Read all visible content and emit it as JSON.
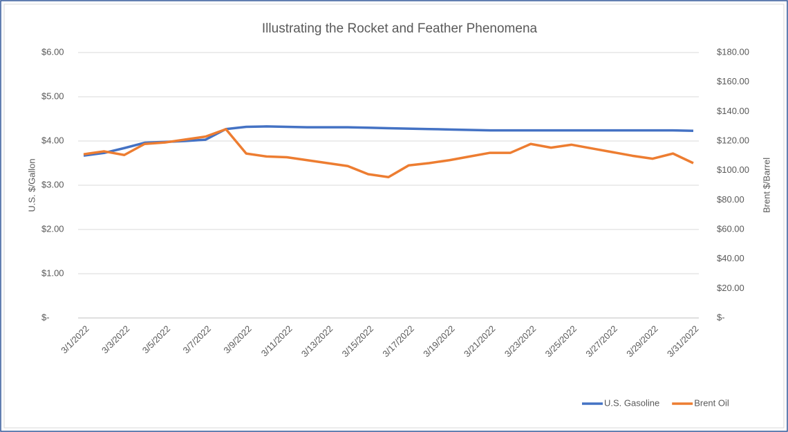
{
  "chart_data": {
    "type": "line",
    "title": "Illustrating the Rocket and Feather Phenomena",
    "y_label": "U.S. $/Gallon",
    "y2_label": "Brent $/Barrel",
    "categories": [
      "3/1/2022",
      null,
      "3/3/2022",
      null,
      "3/5/2022",
      null,
      "3/7/2022",
      null,
      "3/9/2022",
      null,
      "3/11/2022",
      null,
      "3/13/2022",
      null,
      "3/15/2022",
      null,
      "3/17/2022",
      null,
      "3/19/2022",
      null,
      "3/21/2022",
      null,
      "3/23/2022",
      null,
      "3/25/2022",
      null,
      "3/27/2022",
      null,
      "3/29/2022",
      null,
      "3/31/2022"
    ],
    "series": [
      {
        "name": "U.S. Gasoline",
        "color": "#4472c4",
        "axis": "y",
        "values": [
          3.67,
          3.73,
          3.84,
          3.96,
          3.98,
          4.0,
          4.03,
          4.27,
          4.32,
          4.33,
          4.32,
          4.31,
          4.31,
          4.31,
          4.3,
          4.29,
          4.28,
          4.27,
          4.26,
          4.25,
          4.24,
          4.24,
          4.24,
          4.24,
          4.24,
          4.24,
          4.24,
          4.24,
          4.24,
          4.24,
          4.23
        ]
      },
      {
        "name": "Brent Oil",
        "color": "#ed7d31",
        "axis": "y2",
        "values": [
          111,
          113,
          110.5,
          118,
          119,
          121,
          123,
          128,
          111.5,
          109.5,
          109,
          107,
          105,
          103,
          97.5,
          95.5,
          103.5,
          105,
          107,
          109.5,
          112,
          112,
          118,
          115.5,
          117.5,
          115,
          112.5,
          110,
          108,
          111.5,
          105
        ]
      }
    ],
    "ylim": [
      0,
      6
    ],
    "yticks": [
      {
        "value": 0,
        "label": "$-"
      },
      {
        "value": 1,
        "label": "$1.00"
      },
      {
        "value": 2,
        "label": "$2.00"
      },
      {
        "value": 3,
        "label": "$3.00"
      },
      {
        "value": 4,
        "label": "$4.00"
      },
      {
        "value": 5,
        "label": "$5.00"
      },
      {
        "value": 6,
        "label": "$6.00"
      }
    ],
    "y2lim": [
      0,
      180
    ],
    "y2ticks": [
      {
        "value": 0,
        "label": "$-"
      },
      {
        "value": 20,
        "label": "$20.00"
      },
      {
        "value": 40,
        "label": "$40.00"
      },
      {
        "value": 60,
        "label": "$60.00"
      },
      {
        "value": 80,
        "label": "$80.00"
      },
      {
        "value": 100,
        "label": "$100.00"
      },
      {
        "value": 120,
        "label": "$120.00"
      },
      {
        "value": 140,
        "label": "$140.00"
      },
      {
        "value": 160,
        "label": "$160.00"
      },
      {
        "value": 180,
        "label": "$180.00"
      }
    ],
    "grid": true,
    "legend": "bottom-right"
  }
}
